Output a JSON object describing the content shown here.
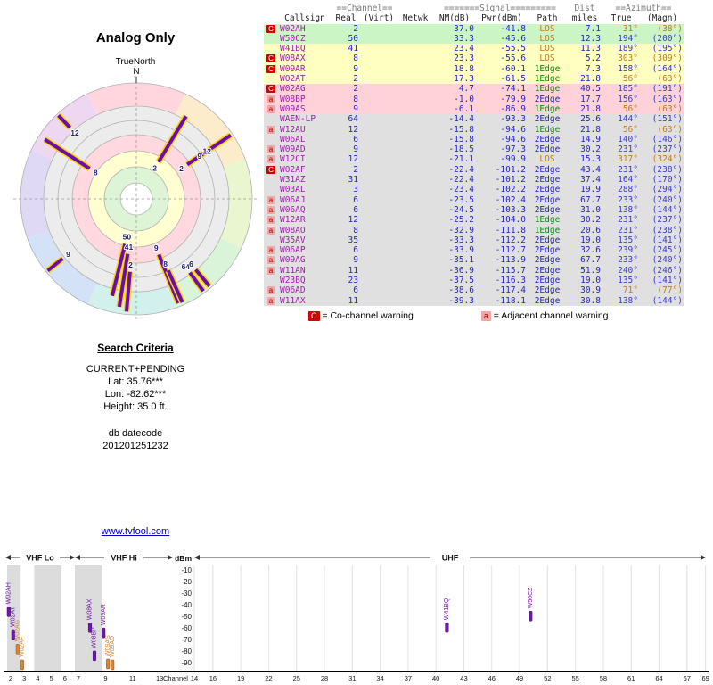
{
  "colors": {
    "accent_purple": "#6a0dad",
    "bar_halo_yellow": "#ffd400",
    "warning_red": "#d40000",
    "warning_pink": "#f5a3a3",
    "link_blue": "#0000bb",
    "row_green": "#ccf5c6",
    "row_yellow": "#ffffc2",
    "row_pink": "#ffd2da",
    "row_gray": "#e0e0e0",
    "orange_station": "#d4863a"
  },
  "radar": {
    "title": "Analog Only",
    "north_label": "TrueNorth",
    "n": "N"
  },
  "search": {
    "title": "Search Criteria",
    "lines": [
      "CURRENT+PENDING",
      "Lat: 35.76***",
      "Lon: -82.62***",
      "Height: 35.0 ft."
    ],
    "datecode_label": "db datecode",
    "datecode": "201201251232"
  },
  "link": "www.tvfool.com",
  "table": {
    "header": {
      "channel_group": "==Channel==",
      "signal_group": "=======Signal=========",
      "dist_group": "Dist",
      "azimuth_group": "==Azimuth==",
      "cols": [
        "Callsign",
        "Real",
        "(Virt)",
        "Netwk",
        "NM(dB)",
        "Pwr(dBm)",
        "Path",
        "miles",
        "True",
        "(Magn)"
      ]
    },
    "legend": {
      "co_sym": "C",
      "co_text": "= Co-channel warning",
      "adj_sym": "a",
      "adj_text": "= Adjacent channel warning"
    },
    "rows": [
      {
        "m": "C",
        "cs": "W02AH",
        "re": "2",
        "vi": "",
        "nw": "",
        "nm": "37.0",
        "pw": "-41.8",
        "pa": "LOS",
        "di": "7.1",
        "tr": "31°",
        "mg": "(38°)",
        "band": "green"
      },
      {
        "m": "",
        "cs": "W50CZ",
        "re": "50",
        "vi": "",
        "nw": "",
        "nm": "33.3",
        "pw": "-45.6",
        "pa": "LOS",
        "di": "12.3",
        "tr": "194°",
        "mg": "(200°)",
        "band": "green"
      },
      {
        "m": "",
        "cs": "W41BQ",
        "re": "41",
        "vi": "",
        "nw": "",
        "nm": "23.4",
        "pw": "-55.5",
        "pa": "LOS",
        "di": "11.3",
        "tr": "189°",
        "mg": "(195°)",
        "band": "yellow"
      },
      {
        "m": "C",
        "cs": "W08AX",
        "re": "8",
        "vi": "",
        "nw": "",
        "nm": "23.3",
        "pw": "-55.6",
        "pa": "LOS",
        "di": "5.2",
        "tr": "303°",
        "mg": "(309°)",
        "band": "yellow"
      },
      {
        "m": "C",
        "cs": "W09AR",
        "re": "9",
        "vi": "",
        "nw": "",
        "nm": "18.8",
        "pw": "-60.1",
        "pa": "1Edge",
        "di": "7.3",
        "tr": "158°",
        "mg": "(164°)",
        "band": "yellow"
      },
      {
        "m": "",
        "cs": "W02AT",
        "re": "2",
        "vi": "",
        "nw": "",
        "nm": "17.3",
        "pw": "-61.5",
        "pa": "1Edge",
        "di": "21.8",
        "tr": "56°",
        "mg": "(63°)",
        "band": "yellow"
      },
      {
        "m": "C",
        "cs": "W02AG",
        "re": "2",
        "vi": "",
        "nw": "",
        "nm": "4.7",
        "pw": "-74.1",
        "pa": "1Edge",
        "di": "40.5",
        "tr": "185°",
        "mg": "(191°)",
        "band": "pink"
      },
      {
        "m": "a",
        "cs": "W08BP",
        "re": "8",
        "vi": "",
        "nw": "",
        "nm": "-1.0",
        "pw": "-79.9",
        "pa": "2Edge",
        "di": "17.7",
        "tr": "156°",
        "mg": "(163°)",
        "band": "pink"
      },
      {
        "m": "a",
        "cs": "W09AS",
        "re": "9",
        "vi": "",
        "nw": "",
        "nm": "-6.1",
        "pw": "-86.9",
        "pa": "1Edge",
        "di": "21.8",
        "tr": "56°",
        "mg": "(63°)",
        "band": "pink"
      },
      {
        "m": "",
        "cs": "WAEN-LP",
        "re": "64",
        "vi": "",
        "nw": "",
        "nm": "-14.4",
        "pw": "-93.3",
        "pa": "2Edge",
        "di": "25.6",
        "tr": "144°",
        "mg": "(151°)",
        "band": "gray"
      },
      {
        "m": "a",
        "cs": "W12AU",
        "re": "12",
        "vi": "",
        "nw": "",
        "nm": "-15.8",
        "pw": "-94.6",
        "pa": "1Edge",
        "di": "21.8",
        "tr": "56°",
        "mg": "(63°)",
        "band": "gray"
      },
      {
        "m": "",
        "cs": "W06AL",
        "re": "6",
        "vi": "",
        "nw": "",
        "nm": "-15.8",
        "pw": "-94.6",
        "pa": "2Edge",
        "di": "14.9",
        "tr": "140°",
        "mg": "(146°)",
        "band": "gray"
      },
      {
        "m": "a",
        "cs": "W09AD",
        "re": "9",
        "vi": "",
        "nw": "",
        "nm": "-18.5",
        "pw": "-97.3",
        "pa": "2Edge",
        "di": "30.2",
        "tr": "231°",
        "mg": "(237°)",
        "band": "gray"
      },
      {
        "m": "a",
        "cs": "W12CI",
        "re": "12",
        "vi": "",
        "nw": "",
        "nm": "-21.1",
        "pw": "-99.9",
        "pa": "LOS",
        "di": "15.3",
        "tr": "317°",
        "mg": "(324°)",
        "band": "gray"
      },
      {
        "m": "C",
        "cs": "W02AF",
        "re": "2",
        "vi": "",
        "nw": "",
        "nm": "-22.4",
        "pw": "-101.2",
        "pa": "2Edge",
        "di": "43.4",
        "tr": "231°",
        "mg": "(238°)",
        "band": "gray"
      },
      {
        "m": "",
        "cs": "W31AZ",
        "re": "31",
        "vi": "",
        "nw": "",
        "nm": "-22.4",
        "pw": "-101.2",
        "pa": "2Edge",
        "di": "37.4",
        "tr": "164°",
        "mg": "(170°)",
        "band": "gray"
      },
      {
        "m": "",
        "cs": "W03AL",
        "re": "3",
        "vi": "",
        "nw": "",
        "nm": "-23.4",
        "pw": "-102.2",
        "pa": "2Edge",
        "di": "19.9",
        "tr": "288°",
        "mg": "(294°)",
        "band": "gray"
      },
      {
        "m": "a",
        "cs": "W06AJ",
        "re": "6",
        "vi": "",
        "nw": "",
        "nm": "-23.5",
        "pw": "-102.4",
        "pa": "2Edge",
        "di": "67.7",
        "tr": "233°",
        "mg": "(240°)",
        "band": "gray"
      },
      {
        "m": "a",
        "cs": "W06AQ",
        "re": "6",
        "vi": "",
        "nw": "",
        "nm": "-24.5",
        "pw": "-103.3",
        "pa": "2Edge",
        "di": "31.0",
        "tr": "138°",
        "mg": "(144°)",
        "band": "gray"
      },
      {
        "m": "a",
        "cs": "W12AR",
        "re": "12",
        "vi": "",
        "nw": "",
        "nm": "-25.2",
        "pw": "-104.0",
        "pa": "1Edge",
        "di": "30.2",
        "tr": "231°",
        "mg": "(237°)",
        "band": "gray"
      },
      {
        "m": "a",
        "cs": "W08AO",
        "re": "8",
        "vi": "",
        "nw": "",
        "nm": "-32.9",
        "pw": "-111.8",
        "pa": "1Edge",
        "di": "20.6",
        "tr": "231°",
        "mg": "(238°)",
        "band": "gray"
      },
      {
        "m": "",
        "cs": "W35AV",
        "re": "35",
        "vi": "",
        "nw": "",
        "nm": "-33.3",
        "pw": "-112.2",
        "pa": "2Edge",
        "di": "19.0",
        "tr": "135°",
        "mg": "(141°)",
        "band": "gray"
      },
      {
        "m": "a",
        "cs": "W06AP",
        "re": "6",
        "vi": "",
        "nw": "",
        "nm": "-33.9",
        "pw": "-112.7",
        "pa": "2Edge",
        "di": "32.6",
        "tr": "239°",
        "mg": "(245°)",
        "band": "gray"
      },
      {
        "m": "a",
        "cs": "W09AG",
        "re": "9",
        "vi": "",
        "nw": "",
        "nm": "-35.1",
        "pw": "-113.9",
        "pa": "2Edge",
        "di": "67.7",
        "tr": "233°",
        "mg": "(240°)",
        "band": "gray"
      },
      {
        "m": "a",
        "cs": "W11AN",
        "re": "11",
        "vi": "",
        "nw": "",
        "nm": "-36.9",
        "pw": "-115.7",
        "pa": "2Edge",
        "di": "51.9",
        "tr": "240°",
        "mg": "(246°)",
        "band": "gray"
      },
      {
        "m": "",
        "cs": "W23BQ",
        "re": "23",
        "vi": "",
        "nw": "",
        "nm": "-37.5",
        "pw": "-116.3",
        "pa": "2Edge",
        "di": "19.0",
        "tr": "135°",
        "mg": "(141°)",
        "band": "gray"
      },
      {
        "m": "a",
        "cs": "W06AD",
        "re": "6",
        "vi": "",
        "nw": "",
        "nm": "-38.6",
        "pw": "-117.4",
        "pa": "2Edge",
        "di": "30.9",
        "tr": "71°",
        "mg": "(77°)",
        "band": "gray"
      },
      {
        "m": "a",
        "cs": "W11AX",
        "re": "11",
        "vi": "",
        "nw": "",
        "nm": "-39.3",
        "pw": "-118.1",
        "pa": "2Edge",
        "di": "30.8",
        "tr": "138°",
        "mg": "(144°)",
        "band": "gray"
      }
    ]
  },
  "chart_data": [
    {
      "type": "radar-polar",
      "title": "Analog Only",
      "orientation_label": "TrueNorth",
      "compass": "N",
      "radial_zones": [
        "green: strongest",
        "yellow: moderate",
        "pink: weak",
        "gray: weakest"
      ],
      "stations": [
        {
          "ch": "2",
          "az": 31,
          "nm": 37.0
        },
        {
          "ch": "50",
          "az": 194,
          "nm": 33.3
        },
        {
          "ch": "41",
          "az": 189,
          "nm": 23.4
        },
        {
          "ch": "8",
          "az": 303,
          "nm": 23.3
        },
        {
          "ch": "9",
          "az": 158,
          "nm": 18.8
        },
        {
          "ch": "2",
          "az": 56,
          "nm": 17.3
        },
        {
          "ch": "2",
          "az": 185,
          "nm": 4.7
        },
        {
          "ch": "8",
          "az": 156,
          "nm": -1.0
        },
        {
          "ch": "9",
          "az": 56,
          "nm": -6.1
        },
        {
          "ch": "64",
          "az": 144,
          "nm": -14.4
        },
        {
          "ch": "12",
          "az": 56,
          "nm": -15.8
        },
        {
          "ch": "6",
          "az": 140,
          "nm": -15.8
        },
        {
          "ch": "9",
          "az": 231,
          "nm": -18.5
        },
        {
          "ch": "12",
          "az": 317,
          "nm": -21.1
        }
      ]
    },
    {
      "type": "bar",
      "xlabel": "Channel",
      "ylabel": "dBm",
      "ylim": [
        -90,
        -10
      ],
      "yticks": [
        -10,
        -20,
        -30,
        -40,
        -50,
        -60,
        -70,
        -80,
        -90
      ],
      "band_sections": [
        {
          "label": "VHF Lo",
          "channels": [
            2,
            6
          ]
        },
        {
          "label": "VHF Hi",
          "channels": [
            7,
            13
          ]
        },
        {
          "label": "UHF",
          "channels": [
            14,
            69
          ]
        }
      ],
      "vhf_ticks": [
        2,
        3,
        4,
        5,
        6,
        7,
        9,
        11,
        13
      ],
      "uhf_ticks": [
        14,
        16,
        19,
        22,
        25,
        28,
        31,
        34,
        37,
        40,
        43,
        46,
        49,
        52,
        55,
        58,
        61,
        64,
        67,
        69
      ],
      "stations": [
        {
          "callsign": "W02AH",
          "channel": 2,
          "pwr_dbm": -41.8,
          "color": "purple"
        },
        {
          "callsign": "W02AT",
          "channel": 2,
          "pwr_dbm": -61.5,
          "color": "purple"
        },
        {
          "callsign": "W02AG",
          "channel": 2,
          "pwr_dbm": -74.1,
          "color": "orange"
        },
        {
          "callsign": "W02AF",
          "channel": 2,
          "pwr_dbm": -101.2,
          "color": "orange"
        },
        {
          "callsign": "W08AX",
          "channel": 8,
          "pwr_dbm": -55.6,
          "color": "purple"
        },
        {
          "callsign": "W08BP",
          "channel": 8,
          "pwr_dbm": -79.9,
          "color": "purple"
        },
        {
          "callsign": "W09AR",
          "channel": 9,
          "pwr_dbm": -60.1,
          "color": "purple"
        },
        {
          "callsign": "W09AS",
          "channel": 9,
          "pwr_dbm": -86.9,
          "color": "orange"
        },
        {
          "callsign": "W09AD",
          "channel": 9,
          "pwr_dbm": -97.3,
          "color": "orange"
        },
        {
          "callsign": "W41BQ",
          "channel": 41,
          "pwr_dbm": -55.5,
          "color": "purple"
        },
        {
          "callsign": "W50CZ",
          "channel": 50,
          "pwr_dbm": -45.6,
          "color": "purple"
        }
      ]
    }
  ]
}
